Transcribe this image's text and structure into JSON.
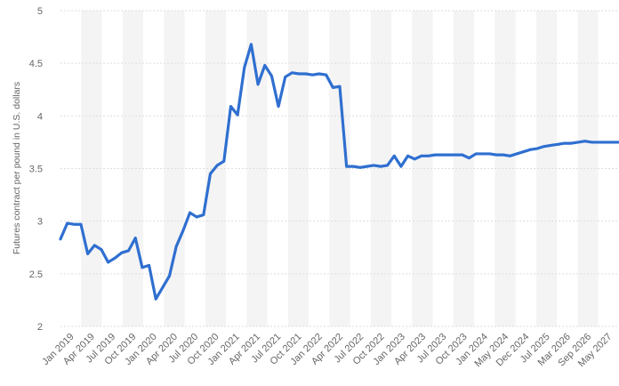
{
  "chart_data": {
    "type": "line",
    "ylabel": "Futures contract per pound in U.S. dollars",
    "ylim": [
      2,
      5
    ],
    "yticks": [
      "2",
      "2.5",
      "3",
      "3.5",
      "4",
      "4.5",
      "5"
    ],
    "grid": true,
    "colors": {
      "line": "#2f6fd0",
      "band": "#f4f4f4",
      "grid": "#dddddd"
    },
    "xtick_labels": [
      "Jan 2019",
      "Apr 2019",
      "Jul 2019",
      "Oct 2019",
      "Jan 2020",
      "Apr 2020",
      "Jul 2020",
      "Oct 2020",
      "Jan 2021",
      "Apr 2021",
      "Jul 2021",
      "Oct 2021",
      "Jan 2022",
      "Apr 2022",
      "Jul 2022",
      "Oct 2022",
      "Jan 2023",
      "Apr 2023",
      "Jul 2023",
      "Oct 2023",
      "Jan 2024",
      "May 2024",
      "Dec 2024",
      "Jul 2025",
      "Mar 2026",
      "Sep 2026",
      "May 2027"
    ],
    "series": [
      {
        "values": [
          2.83,
          2.98,
          2.97,
          2.97,
          2.69,
          2.77,
          2.73,
          2.61,
          2.65,
          2.7,
          2.72,
          2.84,
          2.56,
          2.58,
          2.26,
          2.37,
          2.48,
          2.76,
          2.91,
          3.08,
          3.04,
          3.06,
          3.45,
          3.53,
          3.57,
          4.09,
          4.01,
          4.46,
          4.68,
          4.3,
          4.48,
          4.38,
          4.09,
          4.37,
          4.41,
          4.4,
          4.4,
          4.39,
          4.4,
          4.39,
          4.27,
          4.28,
          3.52,
          3.52,
          3.51,
          3.52,
          3.53,
          3.52,
          3.53,
          3.62,
          3.52,
          3.62,
          3.59,
          3.62,
          3.62,
          3.63,
          3.63,
          3.63,
          3.63,
          3.63,
          3.6,
          3.64,
          3.64,
          3.64,
          3.63,
          3.63,
          3.62,
          3.64,
          3.66,
          3.68,
          3.69,
          3.71,
          3.72,
          3.73,
          3.74,
          3.74,
          3.75,
          3.76,
          3.75,
          3.75,
          3.75,
          3.75,
          3.75
        ]
      }
    ]
  }
}
